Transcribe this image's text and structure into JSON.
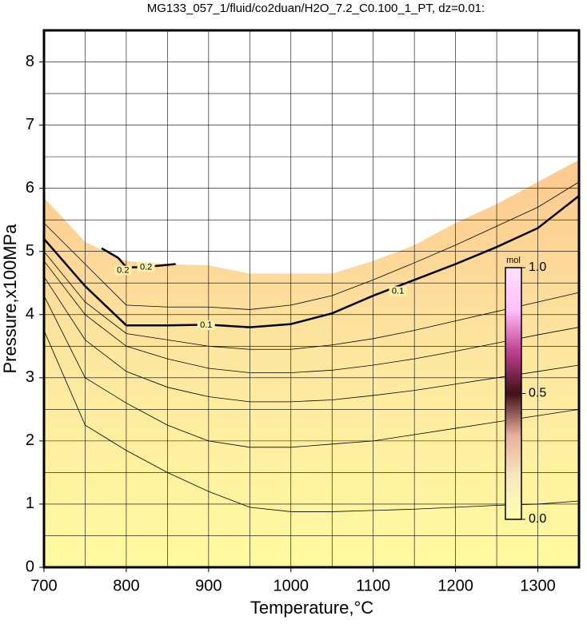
{
  "chart_data": {
    "type": "contour",
    "title": "MG133_057_1/fluid/co2duan/H2O_7.2_C0.100_1_PT, dz=0.01:",
    "xlabel": "Temperature,°C",
    "ylabel": "Pressure,x100MPa",
    "xlim": [
      700,
      1350
    ],
    "ylim": [
      0,
      8.5
    ],
    "xticks": [
      700,
      800,
      900,
      1000,
      1100,
      1200,
      1300
    ],
    "yticks": [
      0,
      1,
      2,
      3,
      4,
      5,
      6,
      7,
      8
    ],
    "xgrid": [
      750,
      800,
      850,
      900,
      950,
      1000,
      1050,
      1100,
      1150,
      1200,
      1250,
      1300
    ],
    "ygrid": [
      0.5,
      1,
      1.5,
      2,
      2.5,
      3,
      3.5,
      4,
      4.5,
      5,
      5.5,
      6,
      6.5,
      7,
      7.5,
      8
    ],
    "grid": true,
    "field": {
      "x": [
        700,
        750,
        800,
        850,
        900,
        950,
        1000,
        1050,
        1100,
        1150,
        1200,
        1250,
        1300,
        1350
      ],
      "top": [
        5.85,
        5.15,
        4.85,
        4.8,
        4.78,
        4.65,
        4.65,
        4.65,
        4.85,
        5.1,
        5.45,
        5.75,
        6.1,
        6.45
      ],
      "colors": [
        "#fffaa0",
        "#fde8a0",
        "#fdc890"
      ]
    },
    "series": [
      {
        "level": 0.1,
        "bold": true,
        "color": "#000000",
        "x": [
          700,
          750,
          800,
          850,
          900,
          950,
          1000,
          1050,
          1100,
          1150,
          1200,
          1250,
          1300,
          1350
        ],
        "y": [
          5.2,
          4.45,
          3.83,
          3.83,
          3.84,
          3.8,
          3.85,
          4.02,
          4.3,
          4.55,
          4.8,
          5.07,
          5.37,
          5.88
        ],
        "label_at": [
          [
            897,
            3.83
          ],
          [
            1130,
            4.37
          ]
        ]
      },
      {
        "level": 0.2,
        "bold": true,
        "color": "#000000",
        "x": [
          770,
          790,
          800,
          820,
          860
        ],
        "y": [
          5.05,
          4.9,
          4.75,
          4.75,
          4.8
        ],
        "label_at": [
          [
            796,
            4.7
          ],
          [
            824,
            4.75
          ]
        ]
      },
      {
        "color": "#000000",
        "x": [
          700,
          750,
          800,
          850,
          900,
          950,
          1000,
          1050,
          1100,
          1150,
          1200,
          1250,
          1300,
          1350
        ],
        "y": [
          3.75,
          2.25,
          1.85,
          1.5,
          1.2,
          0.95,
          0.88,
          0.88,
          0.9,
          0.92,
          0.95,
          0.98,
          1.0,
          1.05
        ]
      },
      {
        "color": "#000000",
        "x": [
          700,
          750,
          800,
          850,
          900,
          950,
          1000,
          1050,
          1100,
          1150,
          1200,
          1250,
          1300,
          1350
        ],
        "y": [
          4.3,
          3.0,
          2.6,
          2.25,
          2.0,
          1.9,
          1.9,
          1.95,
          2.0,
          2.1,
          2.2,
          2.3,
          2.4,
          2.5
        ]
      },
      {
        "color": "#000000",
        "x": [
          700,
          750,
          800,
          850,
          900,
          950,
          1000,
          1050,
          1100,
          1150,
          1200,
          1250,
          1300,
          1350
        ],
        "y": [
          4.6,
          3.6,
          3.1,
          2.85,
          2.7,
          2.62,
          2.62,
          2.65,
          2.72,
          2.8,
          2.9,
          3.0,
          3.1,
          3.2
        ]
      },
      {
        "color": "#000000",
        "x": [
          700,
          750,
          800,
          850,
          900,
          950,
          1000,
          1050,
          1100,
          1150,
          1200,
          1250,
          1300,
          1350
        ],
        "y": [
          4.85,
          4.0,
          3.5,
          3.3,
          3.15,
          3.08,
          3.08,
          3.12,
          3.2,
          3.3,
          3.42,
          3.55,
          3.68,
          3.8
        ]
      },
      {
        "color": "#000000",
        "x": [
          700,
          750,
          800,
          850,
          900,
          950,
          1000,
          1050,
          1100,
          1150,
          1200,
          1250,
          1300,
          1350
        ],
        "y": [
          5.0,
          4.2,
          3.7,
          3.6,
          3.5,
          3.45,
          3.45,
          3.52,
          3.62,
          3.75,
          3.9,
          4.05,
          4.2,
          4.35
        ]
      },
      {
        "color": "#000000",
        "x": [
          700,
          750,
          800,
          850,
          900,
          950,
          1000,
          1050,
          1100,
          1150,
          1200,
          1250,
          1300,
          1350
        ],
        "y": [
          5.45,
          4.8,
          4.15,
          4.12,
          4.12,
          4.08,
          4.15,
          4.3,
          4.55,
          4.82,
          5.1,
          5.4,
          5.7,
          6.1
        ]
      }
    ],
    "colorbar": {
      "label": "mol",
      "lim": [
        0,
        1
      ],
      "ticks": [
        {
          "value": 0,
          "label": "0.0"
        },
        {
          "value": 0.5,
          "label": "0.5"
        },
        {
          "value": 1,
          "label": "1.0"
        }
      ],
      "colors": [
        "#ffffb0",
        "#f8e8c0",
        "#e8b0a0",
        "#401018",
        "#c04090",
        "#ffc0ff",
        "#ffe0ff"
      ]
    }
  }
}
